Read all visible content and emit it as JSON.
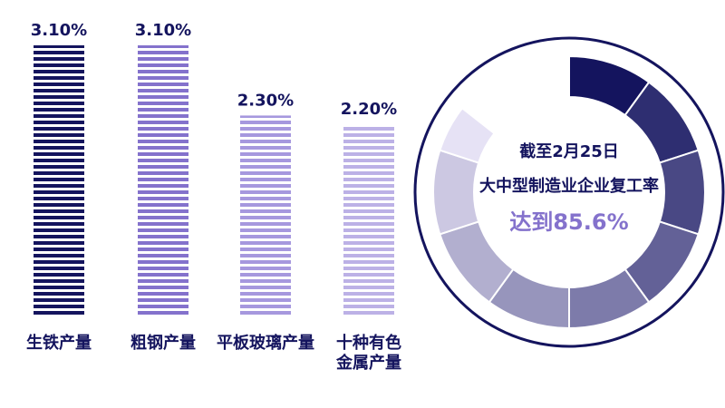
{
  "chart_data": {
    "type": "bar",
    "categories": [
      "生铁产量",
      "粗钢产量",
      "平板玻璃产量",
      "十种有色金属产量"
    ],
    "values": [
      3.1,
      3.1,
      2.3,
      2.2
    ],
    "value_labels": [
      "3.10%",
      "3.10%",
      "2.30%",
      "2.20%"
    ],
    "colors": [
      "#14145e",
      "#8472cc",
      "#a698de",
      "#bcb1e6"
    ]
  },
  "gauge": {
    "date_label": "截至2月25日",
    "title": "大中型制造业企业复工率",
    "value_label": "达到85.6%",
    "value": 85.6,
    "color_start": "#14145e",
    "color_end": "#e6e2f5"
  }
}
